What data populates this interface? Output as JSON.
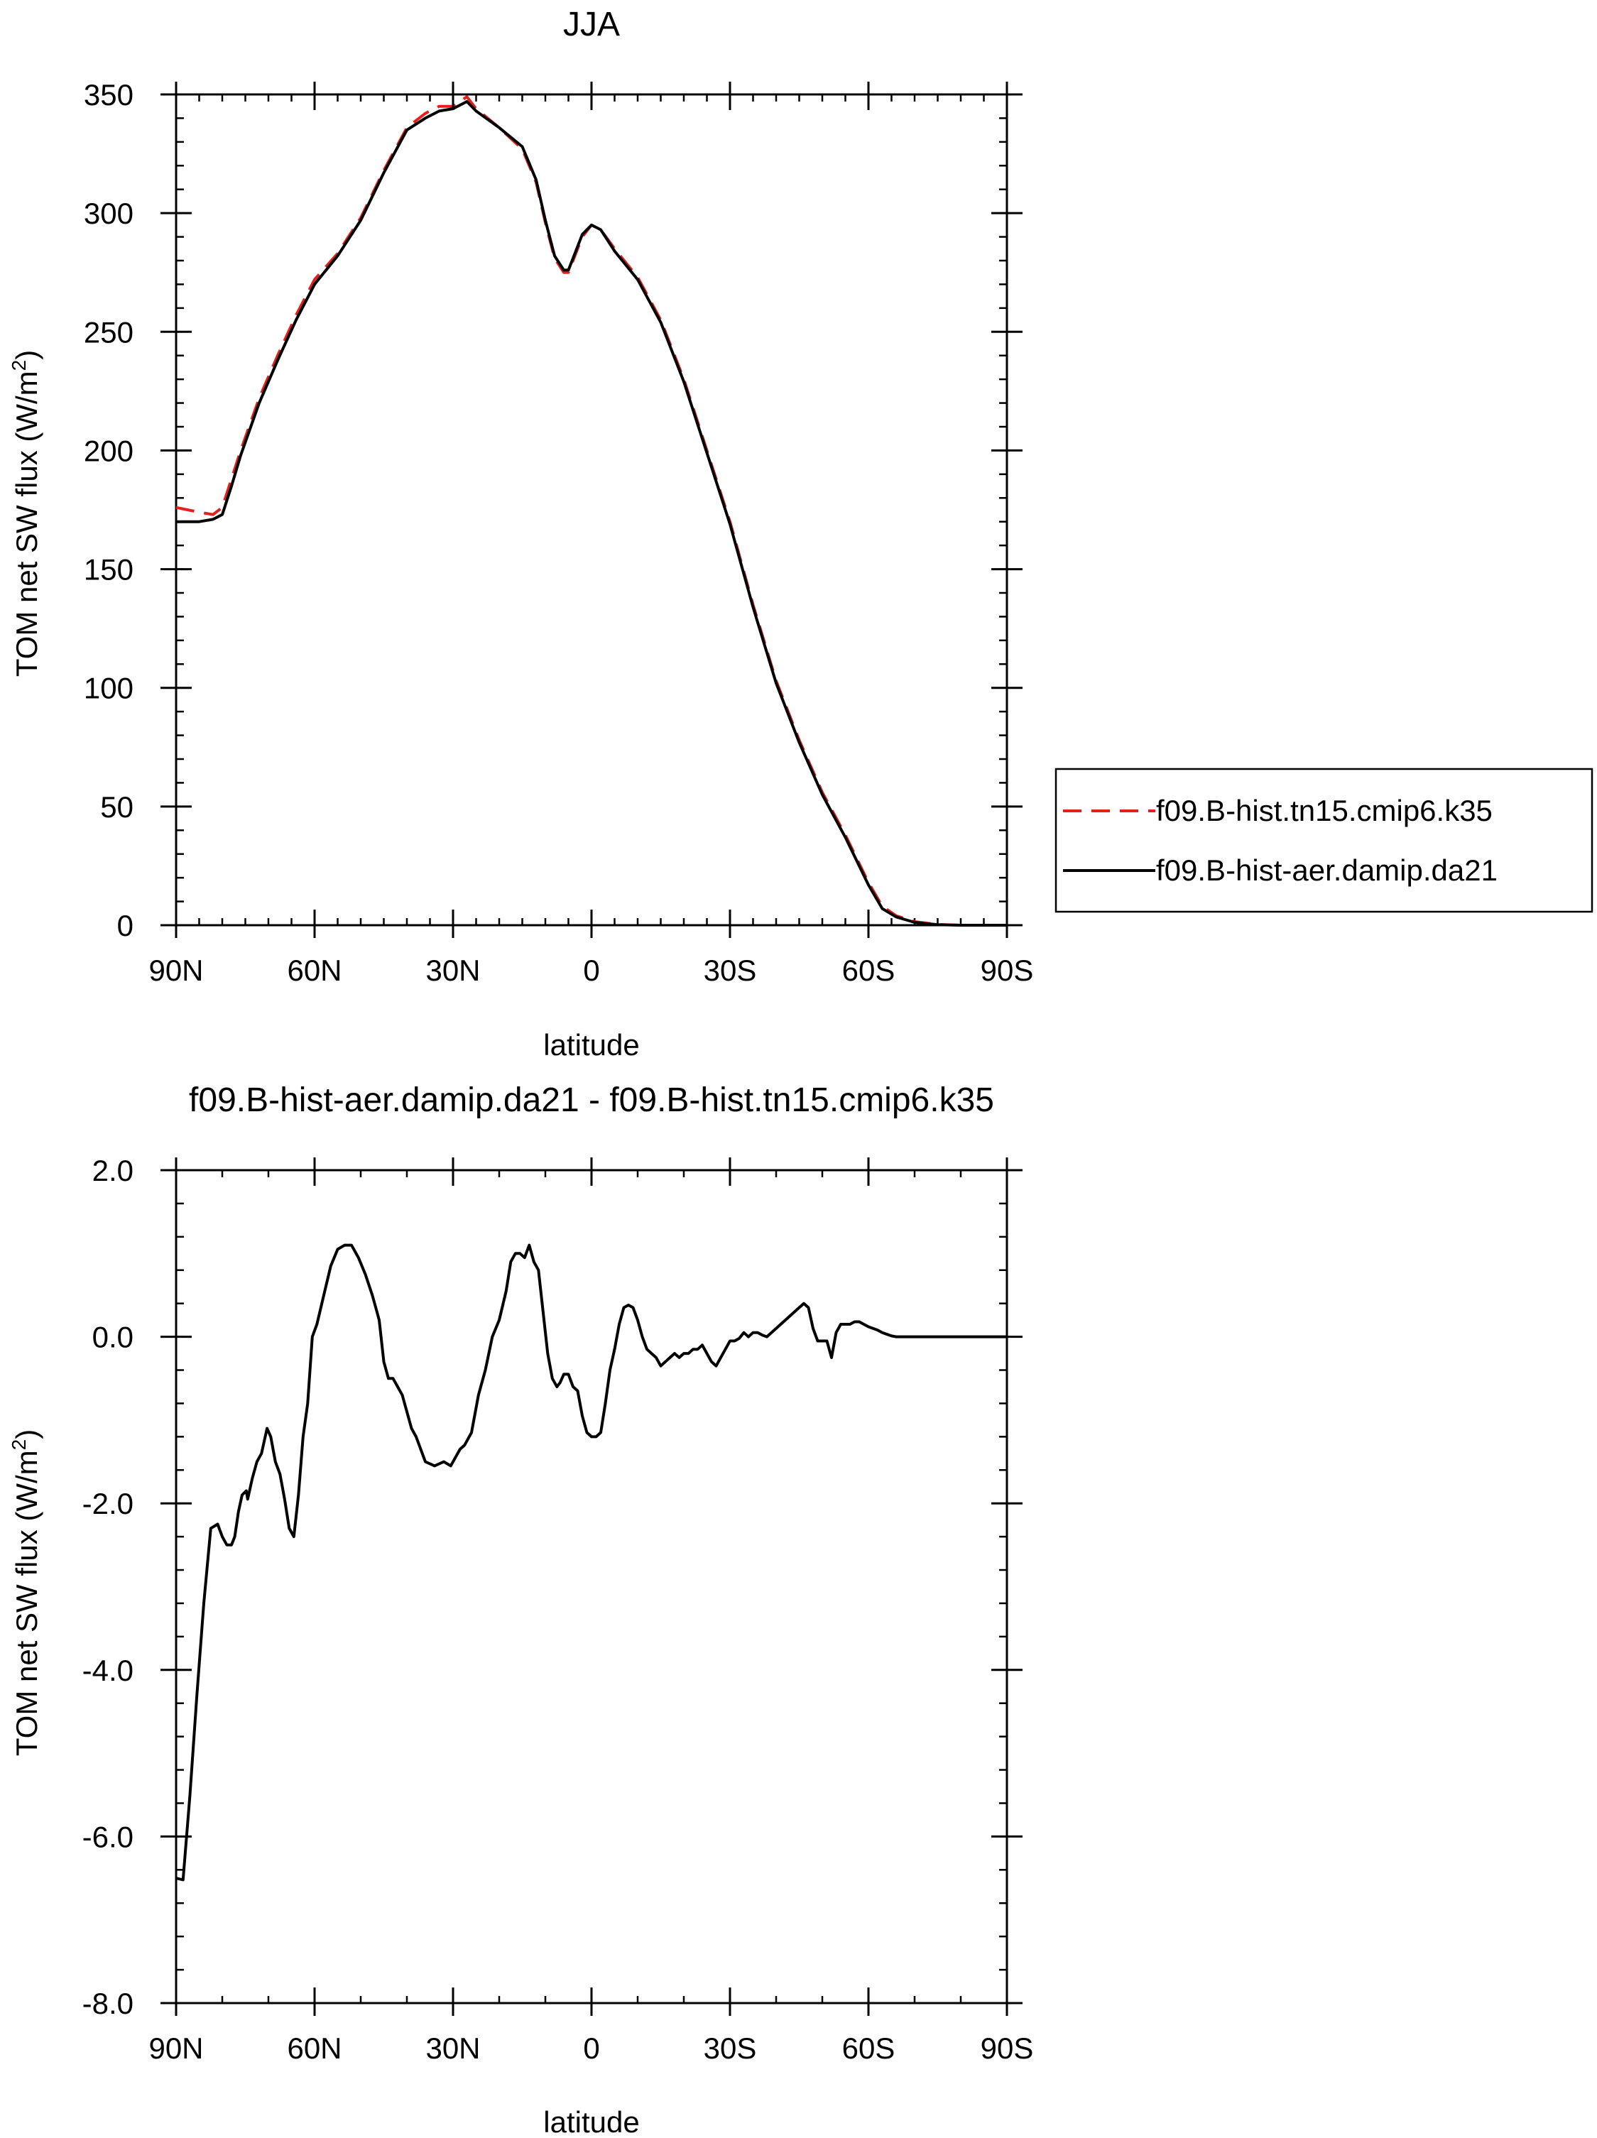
{
  "chart_data": [
    {
      "type": "line",
      "title": "JJA",
      "xlabel": "latitude",
      "ylabel": "TOM net SW flux (W/m",
      "ylabel_sup": "2",
      "ylabel_end": ")",
      "xlim": [
        90,
        -90
      ],
      "ylim": [
        0,
        350
      ],
      "xticks": [
        {
          "value": 90,
          "label": "90N"
        },
        {
          "value": 60,
          "label": "60N"
        },
        {
          "value": 30,
          "label": "30N"
        },
        {
          "value": 0,
          "label": "0"
        },
        {
          "value": -30,
          "label": "30S"
        },
        {
          "value": -60,
          "label": "60S"
        },
        {
          "value": -90,
          "label": "90S"
        }
      ],
      "yticks": [
        {
          "value": 0,
          "label": "0"
        },
        {
          "value": 50,
          "label": "50"
        },
        {
          "value": 100,
          "label": "100"
        },
        {
          "value": 150,
          "label": "150"
        },
        {
          "value": 200,
          "label": "200"
        },
        {
          "value": 250,
          "label": "250"
        },
        {
          "value": 300,
          "label": "300"
        },
        {
          "value": 350,
          "label": "350"
        }
      ],
      "legend_position": "right",
      "series": [
        {
          "name": "f09.B-hist.tn15.cmip6.k35",
          "color": "#e3201b",
          "dash": "dashed",
          "x": [
            90,
            85,
            82,
            80,
            78,
            76,
            72,
            68,
            64,
            60,
            55,
            50,
            45,
            40,
            36,
            33,
            30,
            27,
            25,
            20,
            15,
            12,
            10,
            8,
            6,
            5,
            4,
            2,
            0,
            -2,
            -5,
            -10,
            -15,
            -20,
            -25,
            -30,
            -35,
            -40,
            -45,
            -50,
            -55,
            -60,
            -63,
            -66,
            -70,
            -75,
            -80,
            -85,
            -90
          ],
          "y": [
            176,
            174,
            173,
            176,
            188,
            200,
            222,
            240,
            257,
            272,
            283,
            298,
            318,
            336,
            342,
            345,
            345,
            349,
            344,
            336,
            327,
            313,
            296,
            281,
            275,
            275,
            280,
            290,
            295,
            293,
            285,
            273,
            255,
            230,
            200,
            170,
            135,
            103,
            78,
            56,
            38,
            18,
            8,
            4,
            1.5,
            0.3,
            0,
            0,
            0
          ]
        },
        {
          "name": "f09.B-hist-aer.damip.da21",
          "color": "#000000",
          "dash": "solid",
          "x": [
            90,
            85,
            82,
            80,
            78,
            76,
            72,
            68,
            64,
            60,
            55,
            50,
            45,
            40,
            36,
            33,
            30,
            27,
            25,
            20,
            15,
            12,
            10,
            8,
            6,
            5,
            4,
            2,
            0,
            -2,
            -5,
            -10,
            -15,
            -20,
            -25,
            -30,
            -35,
            -40,
            -45,
            -50,
            -55,
            -60,
            -63,
            -66,
            -70,
            -75,
            -80,
            -85,
            -90
          ],
          "y": [
            170,
            170,
            171,
            173,
            185,
            198,
            220,
            238,
            255,
            270,
            282,
            297,
            317,
            335,
            340,
            343,
            344,
            347,
            343,
            336,
            328,
            314,
            297,
            282,
            276,
            276,
            281,
            291,
            295,
            293,
            284,
            272,
            254,
            229,
            199,
            169,
            134,
            102,
            77,
            55,
            37,
            17,
            7,
            3.5,
            1.2,
            0.2,
            0,
            0,
            0
          ]
        }
      ]
    },
    {
      "type": "line",
      "title": "f09.B-hist-aer.damip.da21 - f09.B-hist.tn15.cmip6.k35",
      "xlabel": "latitude",
      "ylabel": "TOM net SW flux (W/m",
      "ylabel_sup": "2",
      "ylabel_end": ")",
      "xlim": [
        90,
        -90
      ],
      "ylim": [
        -8,
        2
      ],
      "xticks": [
        {
          "value": 90,
          "label": "90N"
        },
        {
          "value": 60,
          "label": "60N"
        },
        {
          "value": 30,
          "label": "30N"
        },
        {
          "value": 0,
          "label": "0"
        },
        {
          "value": -30,
          "label": "30S"
        },
        {
          "value": -60,
          "label": "60S"
        },
        {
          "value": -90,
          "label": "90S"
        }
      ],
      "yticks": [
        {
          "value": 2,
          "label": "2.0"
        },
        {
          "value": 0,
          "label": "0.0"
        },
        {
          "value": -2,
          "label": "-2.0"
        },
        {
          "value": -4,
          "label": "-4.0"
        },
        {
          "value": -6,
          "label": "-6.0"
        },
        {
          "value": -8,
          "label": "-8.0"
        }
      ],
      "series": [
        {
          "color": "#000000",
          "dash": "solid",
          "x": [
            90,
            88.5,
            87,
            85.5,
            84,
            82.5,
            81,
            80,
            79,
            78,
            77.3,
            76.5,
            75.7,
            74.8,
            74.5,
            73.5,
            72.5,
            71.5,
            70.3,
            69.5,
            68.5,
            67.5,
            66.5,
            65.5,
            64.5,
            63.5,
            62.5,
            61.5,
            60.5,
            59.5,
            58,
            56.5,
            55,
            53.5,
            52,
            50.5,
            49,
            47.5,
            46.5,
            46,
            45,
            44,
            43,
            42,
            41,
            40,
            39,
            38,
            36,
            34,
            32,
            30.5,
            29.5,
            28.5,
            27.5,
            26,
            24.5,
            23,
            21.5,
            20,
            18.5,
            17.5,
            16.5,
            15.5,
            14.5,
            13.5,
            12.5,
            11.5,
            10.5,
            9.5,
            8.5,
            7.5,
            6.8,
            6,
            5,
            4,
            3,
            2,
            1,
            0,
            -1,
            -2,
            -3,
            -4,
            -5,
            -6,
            -7,
            -8,
            -9,
            -10,
            -11,
            -12,
            -13,
            -14,
            -15,
            -16,
            -17,
            -18,
            -19,
            -20,
            -21,
            -22,
            -23,
            -24,
            -25,
            -26,
            -27,
            -28,
            -29,
            -30,
            -31,
            -32,
            -33,
            -34,
            -35,
            -36,
            -37,
            -38,
            -39,
            -40,
            -41,
            -42,
            -43,
            -44,
            -45,
            -46,
            -47,
            -48,
            -49,
            -50,
            -51,
            -52,
            -53,
            -54,
            -55,
            -56,
            -57,
            -58,
            -59,
            -60,
            -61,
            -62,
            -63,
            -64,
            -65,
            -66,
            -67,
            -68,
            -69,
            -70,
            -72,
            -74,
            -76,
            -78,
            -80,
            -82,
            -84,
            -86,
            -88,
            -90
          ],
          "y": [
            -6.5,
            -6.52,
            -5.5,
            -4.3,
            -3.2,
            -2.3,
            -2.25,
            -2.4,
            -2.5,
            -2.5,
            -2.4,
            -2.1,
            -1.9,
            -1.85,
            -1.95,
            -1.7,
            -1.5,
            -1.4,
            -1.1,
            -1.2,
            -1.5,
            -1.65,
            -1.95,
            -2.3,
            -2.4,
            -1.9,
            -1.2,
            -0.8,
            0.0,
            0.15,
            0.5,
            0.85,
            1.05,
            1.1,
            1.1,
            0.95,
            0.75,
            0.5,
            0.3,
            0.2,
            -0.3,
            -0.5,
            -0.5,
            -0.6,
            -0.7,
            -0.9,
            -1.1,
            -1.2,
            -1.5,
            -1.55,
            -1.5,
            -1.55,
            -1.45,
            -1.35,
            -1.3,
            -1.15,
            -0.7,
            -0.4,
            0.0,
            0.2,
            0.55,
            0.9,
            1.0,
            1.0,
            0.95,
            1.1,
            0.9,
            0.8,
            0.3,
            -0.2,
            -0.5,
            -0.6,
            -0.55,
            -0.45,
            -0.45,
            -0.6,
            -0.65,
            -0.95,
            -1.15,
            -1.2,
            -1.2,
            -1.15,
            -0.8,
            -0.4,
            -0.15,
            0.15,
            0.35,
            0.38,
            0.35,
            0.2,
            0.0,
            -0.15,
            -0.2,
            -0.25,
            -0.35,
            -0.3,
            -0.25,
            -0.2,
            -0.25,
            -0.2,
            -0.2,
            -0.15,
            -0.15,
            -0.1,
            -0.2,
            -0.3,
            -0.35,
            -0.25,
            -0.15,
            -0.05,
            -0.05,
            -0.02,
            0.05,
            0.0,
            0.05,
            0.05,
            0.02,
            0.0,
            0.05,
            0.1,
            0.15,
            0.2,
            0.25,
            0.3,
            0.35,
            0.4,
            0.35,
            0.1,
            -0.05,
            -0.05,
            -0.05,
            -0.25,
            0.05,
            0.15,
            0.15,
            0.15,
            0.18,
            0.18,
            0.15,
            0.12,
            0.1,
            0.08,
            0.05,
            0.03,
            0.01,
            0.0,
            0.0,
            0.0,
            0.0,
            0.0,
            0.0,
            0.0,
            0.0,
            0.0,
            0.0,
            0.0,
            0.0,
            0.0,
            0.0,
            0.0
          ]
        }
      ]
    }
  ]
}
